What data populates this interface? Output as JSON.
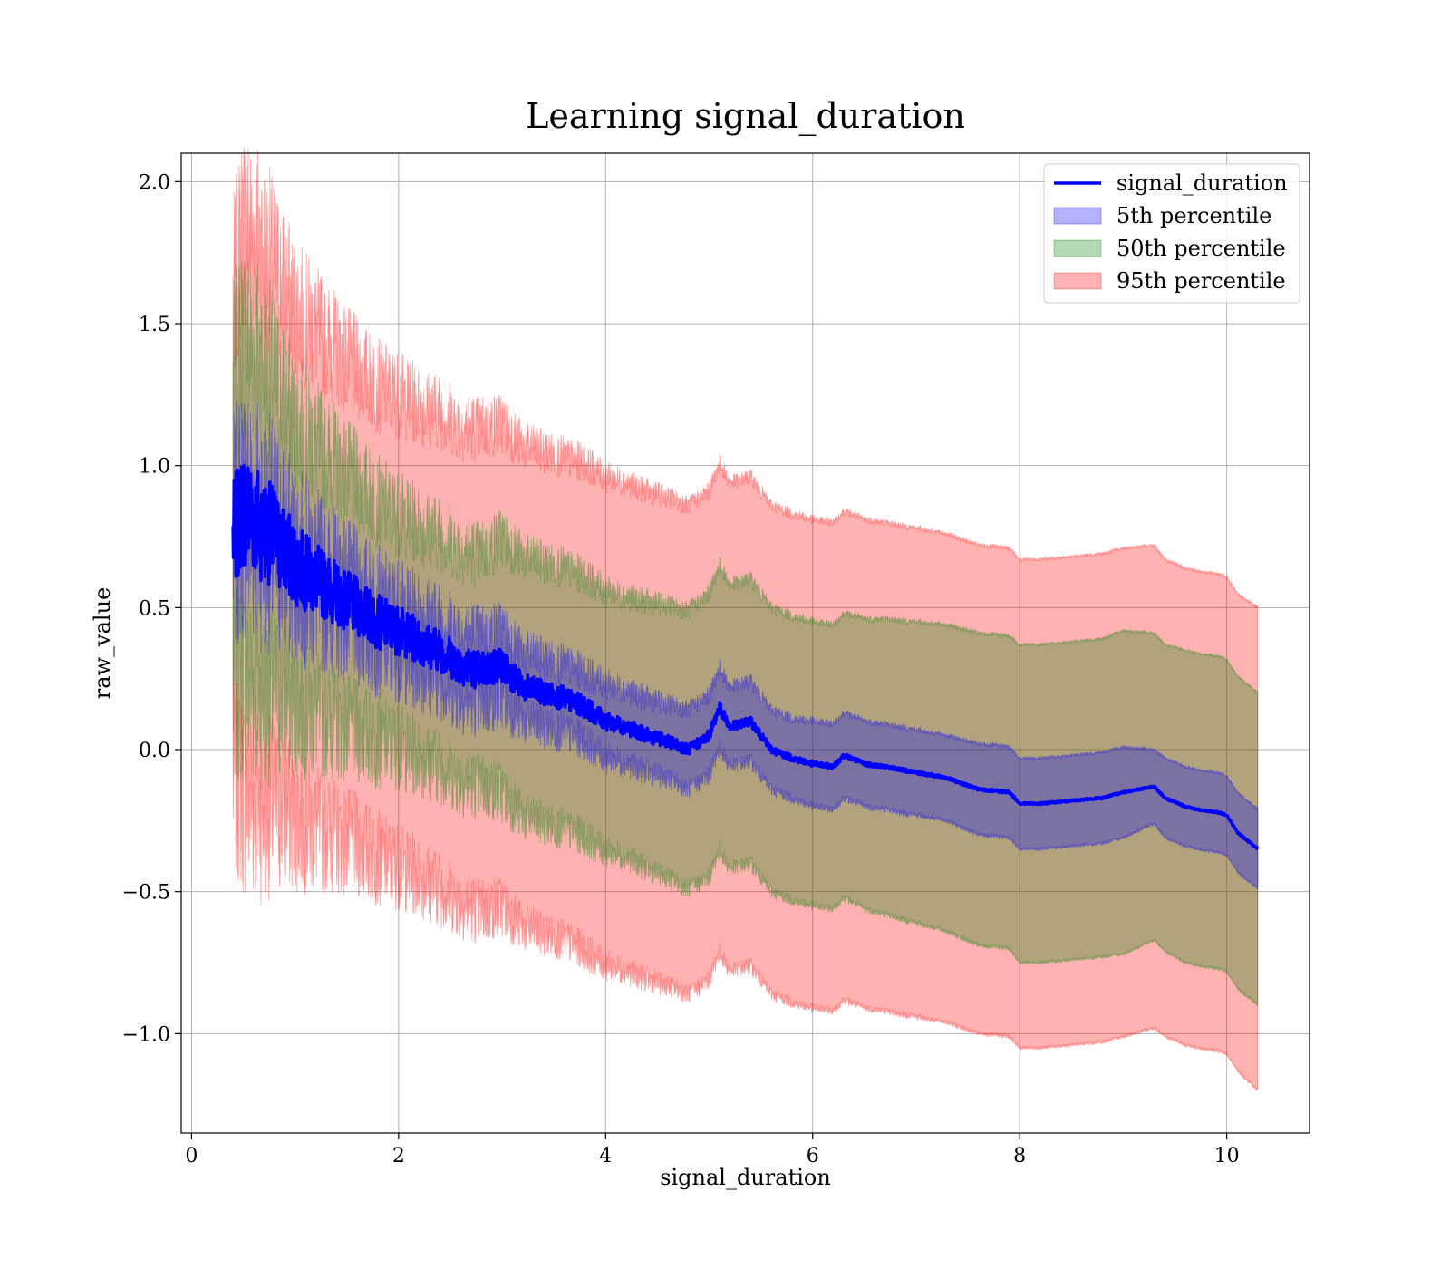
{
  "chart_data": {
    "type": "line",
    "title": "Learning signal_duration",
    "xlabel": "signal_duration",
    "ylabel": "raw_value",
    "xlim": [
      -0.1,
      10.8
    ],
    "ylim": [
      -1.35,
      2.1
    ],
    "xticks": [
      0,
      2,
      4,
      6,
      8,
      10
    ],
    "xtick_labels": [
      "0",
      "2",
      "4",
      "6",
      "8",
      "10"
    ],
    "yticks": [
      -1.0,
      -0.5,
      0.0,
      0.5,
      1.0,
      1.5,
      2.0
    ],
    "ytick_labels": [
      "−1.0",
      "−0.5",
      "0.0",
      "0.5",
      "1.0",
      "1.5",
      "2.0"
    ],
    "grid": true,
    "legend_position": "top-right",
    "x": [
      0.4,
      0.5,
      0.6,
      0.7,
      0.8,
      0.9,
      1.0,
      1.2,
      1.4,
      1.6,
      1.8,
      2.0,
      2.2,
      2.4,
      2.6,
      2.8,
      3.0,
      3.2,
      3.4,
      3.6,
      3.8,
      4.0,
      4.2,
      4.4,
      4.6,
      4.8,
      5.0,
      5.1,
      5.2,
      5.4,
      5.6,
      5.8,
      6.0,
      6.2,
      6.3,
      6.5,
      6.7,
      7.0,
      7.3,
      7.6,
      7.9,
      8.0,
      8.2,
      8.5,
      8.8,
      9.0,
      9.3,
      9.4,
      9.6,
      9.7,
      9.9,
      10.0,
      10.1,
      10.3
    ],
    "line": [
      0.75,
      0.85,
      0.82,
      0.78,
      0.75,
      0.7,
      0.65,
      0.6,
      0.55,
      0.5,
      0.45,
      0.42,
      0.38,
      0.35,
      0.3,
      0.28,
      0.3,
      0.22,
      0.2,
      0.18,
      0.15,
      0.1,
      0.08,
      0.05,
      0.03,
      0.0,
      0.05,
      0.15,
      0.08,
      0.1,
      0.0,
      -0.03,
      -0.05,
      -0.06,
      -0.02,
      -0.05,
      -0.06,
      -0.08,
      -0.1,
      -0.14,
      -0.15,
      -0.19,
      -0.19,
      -0.18,
      -0.17,
      -0.15,
      -0.13,
      -0.17,
      -0.2,
      -0.21,
      -0.22,
      -0.23,
      -0.29,
      -0.35
    ],
    "noise_scale": [
      0.12,
      0.13,
      0.13,
      0.12,
      0.11,
      0.1,
      0.09,
      0.08,
      0.07,
      0.065,
      0.06,
      0.055,
      0.05,
      0.048,
      0.045,
      0.042,
      0.04,
      0.03,
      0.028,
      0.026,
      0.024,
      0.02,
      0.018,
      0.016,
      0.014,
      0.012,
      0.012,
      0.012,
      0.01,
      0.01,
      0.008,
      0.007,
      0.006,
      0.005,
      0.005,
      0.005,
      0.004,
      0.004,
      0.003,
      0.003,
      0.003,
      0.002,
      0.002,
      0.002,
      0.002,
      0.002,
      0.002,
      0.002,
      0.002,
      0.002,
      0.002,
      0.002,
      0.002,
      0.002
    ],
    "band_halfwidths": {
      "p5": [
        0.08,
        0.1,
        0.1,
        0.1,
        0.1,
        0.1,
        0.1,
        0.1,
        0.1,
        0.1,
        0.1,
        0.1,
        0.11,
        0.11,
        0.12,
        0.12,
        0.12,
        0.12,
        0.12,
        0.12,
        0.12,
        0.13,
        0.13,
        0.13,
        0.13,
        0.14,
        0.14,
        0.14,
        0.14,
        0.14,
        0.14,
        0.14,
        0.15,
        0.15,
        0.15,
        0.15,
        0.15,
        0.15,
        0.15,
        0.16,
        0.16,
        0.16,
        0.16,
        0.16,
        0.16,
        0.16,
        0.13,
        0.14,
        0.14,
        0.14,
        0.14,
        0.14,
        0.14,
        0.14
      ],
      "p50": [
        0.55,
        0.6,
        0.6,
        0.58,
        0.55,
        0.52,
        0.5,
        0.48,
        0.46,
        0.44,
        0.42,
        0.41,
        0.41,
        0.41,
        0.41,
        0.41,
        0.45,
        0.46,
        0.46,
        0.46,
        0.46,
        0.46,
        0.46,
        0.47,
        0.48,
        0.49,
        0.5,
        0.5,
        0.5,
        0.5,
        0.5,
        0.5,
        0.5,
        0.5,
        0.5,
        0.51,
        0.52,
        0.53,
        0.54,
        0.55,
        0.55,
        0.56,
        0.56,
        0.56,
        0.56,
        0.57,
        0.54,
        0.54,
        0.55,
        0.55,
        0.55,
        0.55,
        0.55,
        0.55
      ],
      "p95": [
        0.85,
        1.0,
        1.0,
        0.98,
        0.95,
        0.92,
        0.9,
        0.88,
        0.86,
        0.84,
        0.83,
        0.83,
        0.83,
        0.84,
        0.84,
        0.85,
        0.85,
        0.85,
        0.85,
        0.85,
        0.86,
        0.86,
        0.86,
        0.86,
        0.86,
        0.86,
        0.86,
        0.86,
        0.86,
        0.86,
        0.86,
        0.86,
        0.86,
        0.86,
        0.86,
        0.86,
        0.86,
        0.86,
        0.86,
        0.86,
        0.86,
        0.86,
        0.86,
        0.86,
        0.86,
        0.86,
        0.85,
        0.84,
        0.84,
        0.84,
        0.84,
        0.84,
        0.84,
        0.85
      ]
    },
    "series": [
      {
        "name": "signal_duration",
        "kind": "line",
        "color": "#0000ff"
      },
      {
        "name": "5th percentile",
        "kind": "band",
        "color": "#0000ff",
        "alpha": 0.3
      },
      {
        "name": "50th percentile",
        "kind": "band",
        "color": "#008000",
        "alpha": 0.3
      },
      {
        "name": "95th percentile",
        "kind": "band",
        "color": "#ff0000",
        "alpha": 0.3
      }
    ]
  }
}
